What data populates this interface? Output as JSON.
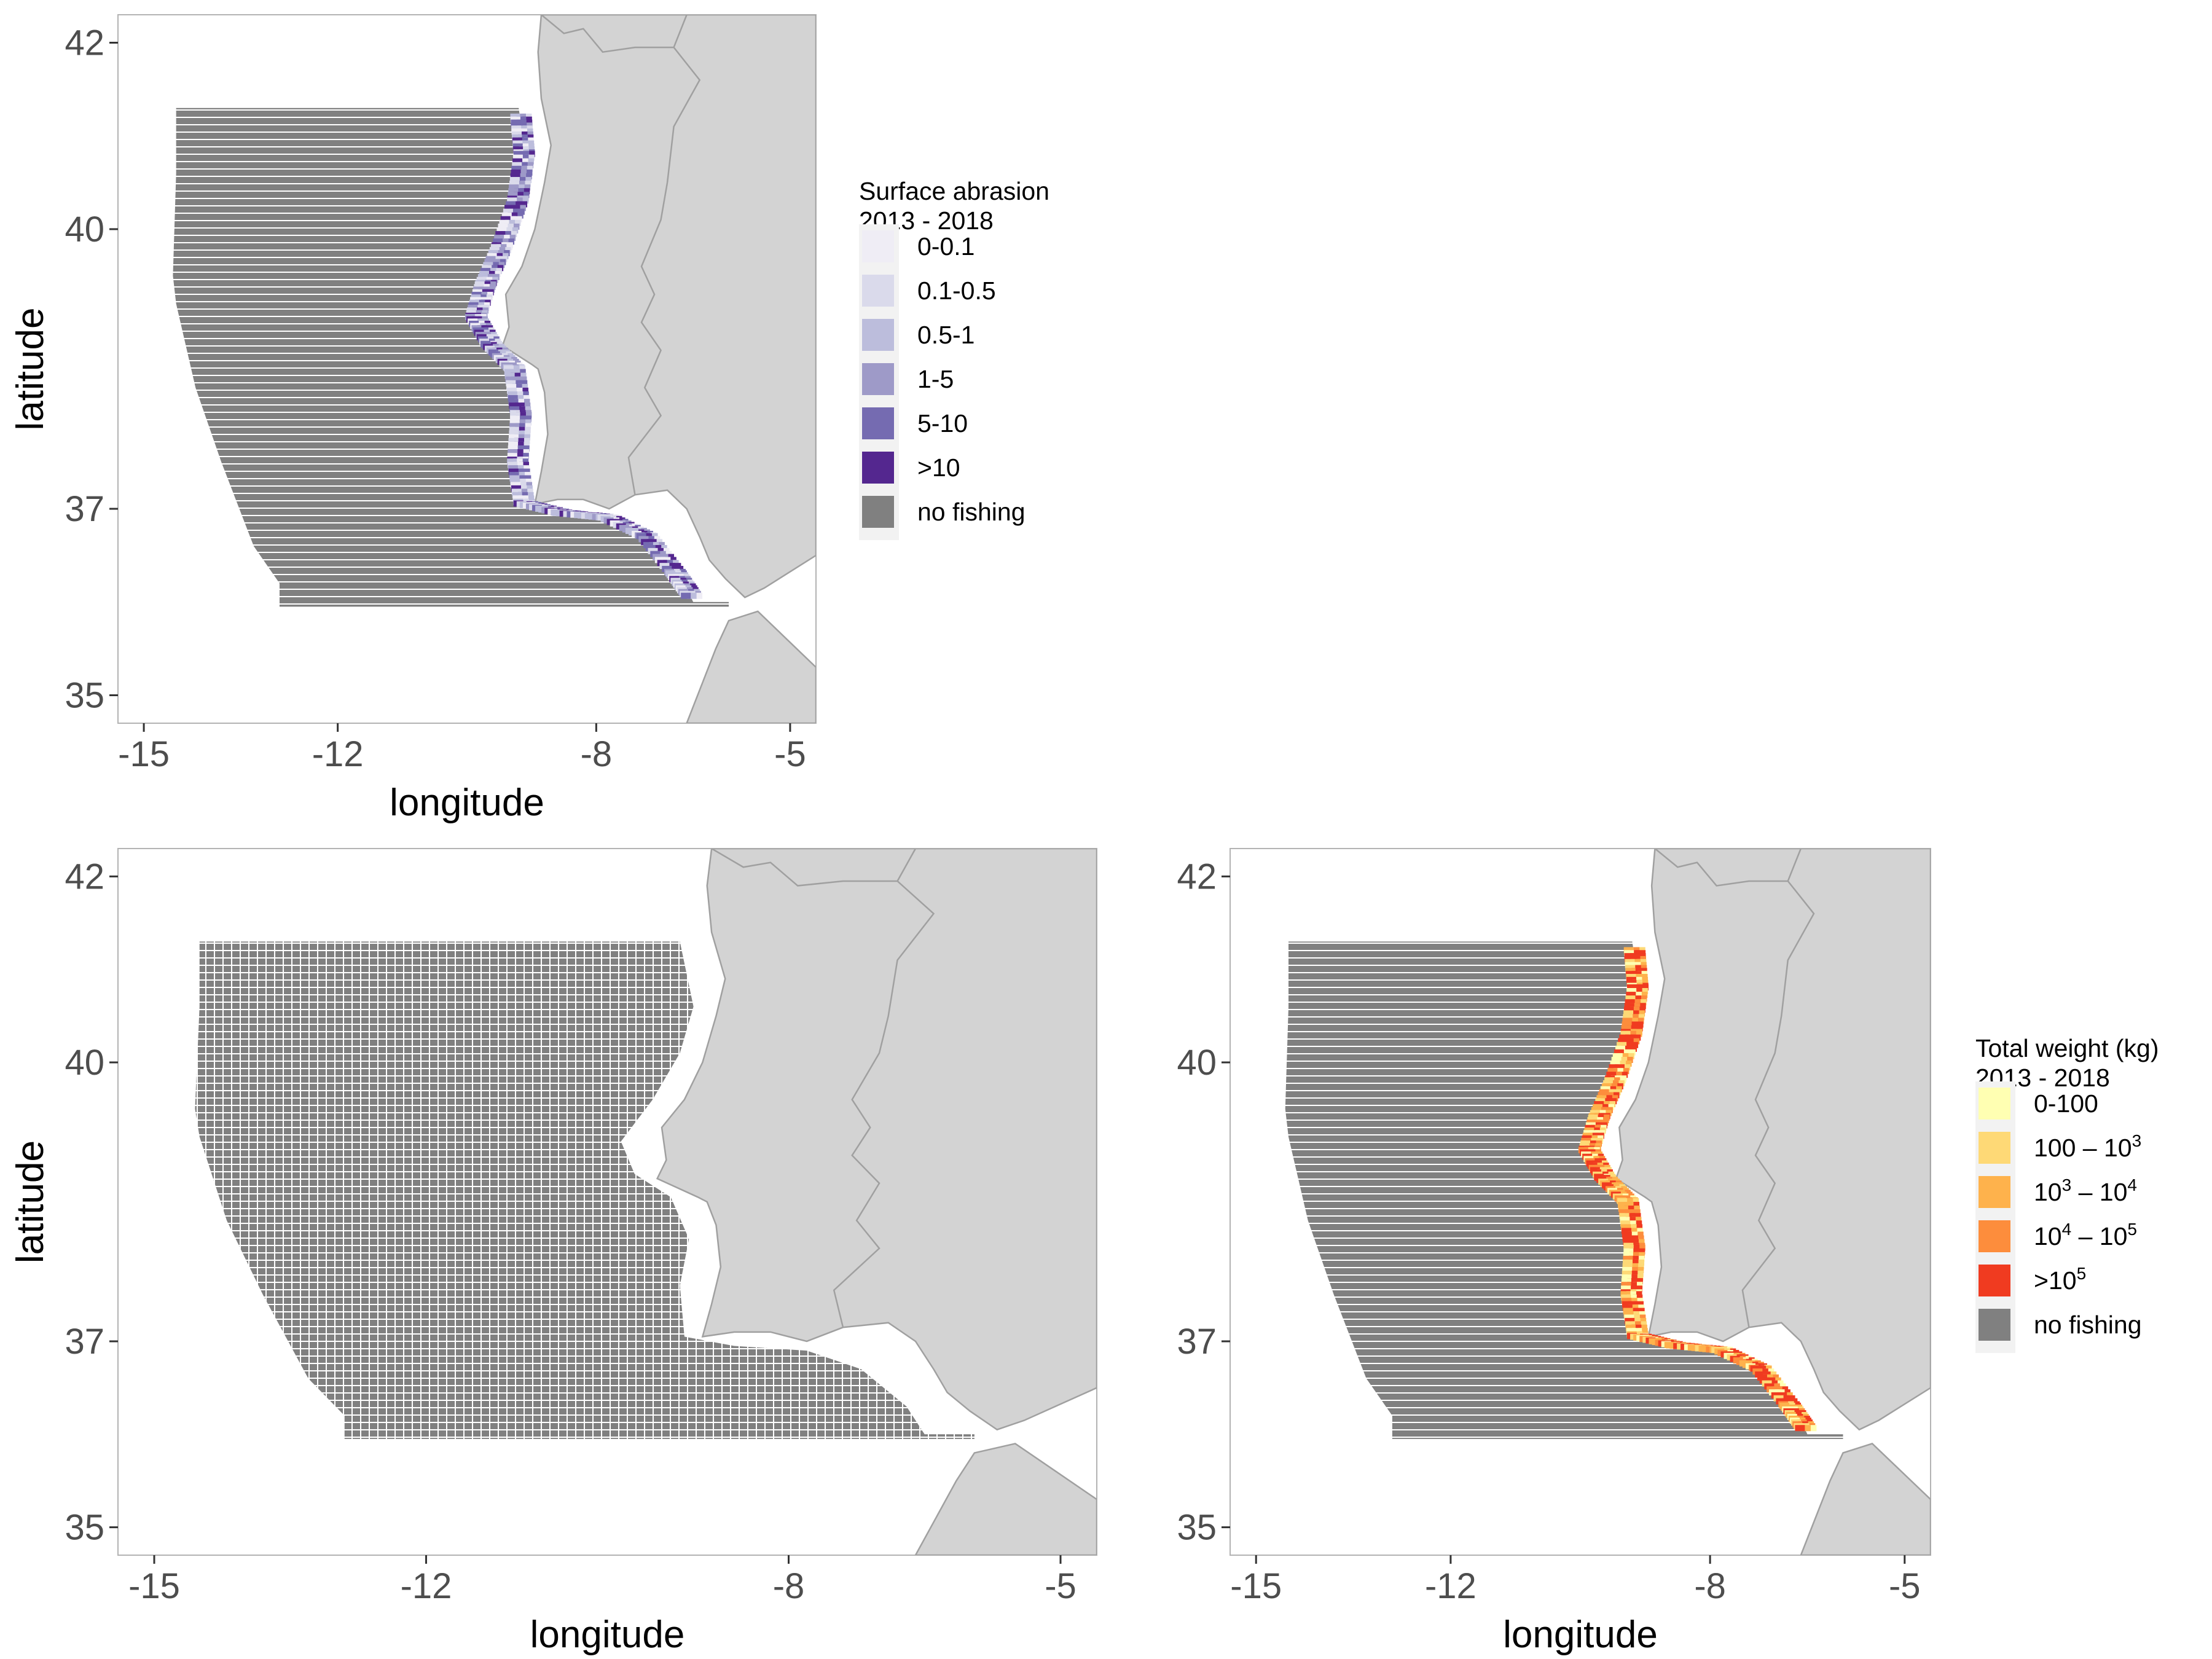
{
  "chart_data": [
    {
      "type": "heatmap",
      "panel": "top-left",
      "xlabel": "longitude",
      "ylabel": "latitude",
      "xlim": [
        -15.4,
        -4.6
      ],
      "ylim": [
        34.7,
        42.3
      ],
      "xticks": [
        -15,
        -12,
        -8,
        -5
      ],
      "yticks": [
        35,
        37,
        40,
        42
      ],
      "grid": false,
      "legend": {
        "title_lines": [
          "Surface abrasion",
          " 2013 - 2018"
        ],
        "items": [
          {
            "label": "0-0.1",
            "color": "#efedf5"
          },
          {
            "label": "0.1-0.5",
            "color": "#dadaeb"
          },
          {
            "label": "0.5-1",
            "color": "#bcbddc"
          },
          {
            "label": "1-5",
            "color": "#9e9ac8"
          },
          {
            "label": "5-10",
            "color": "#756bb1"
          },
          {
            "label": ">10",
            "color": "#54278f"
          },
          {
            "label": "no fishing",
            "color": "#808080"
          }
        ]
      }
    },
    {
      "type": "heatmap",
      "panel": "bottom-left",
      "xlabel": "longitude",
      "ylabel": "latitude",
      "xlim": [
        -15.4,
        -4.6
      ],
      "ylim": [
        34.7,
        42.3
      ],
      "xticks": [
        -15,
        -12,
        -8,
        -5
      ],
      "yticks": [
        35,
        37,
        40,
        42
      ],
      "grid": false
    },
    {
      "type": "heatmap",
      "panel": "bottom-right",
      "xlabel": "longitude",
      "ylabel": "latitude",
      "xlim": [
        -15.4,
        -4.6
      ],
      "ylim": [
        34.7,
        42.3
      ],
      "xticks": [
        -15,
        -12,
        -8,
        -5
      ],
      "yticks": [
        35,
        37,
        40,
        42
      ],
      "grid": false,
      "legend": {
        "title_lines": [
          "Total weight (kg)",
          " 2013 - 2018"
        ],
        "items": [
          {
            "label": "0-100",
            "base": "0-100",
            "sup": "",
            "color": "#ffffb2"
          },
          {
            "label": "100 – 10^3",
            "base": "100 – 10",
            "sup": "3",
            "color": "#fed976"
          },
          {
            "label": "10^3 – 10^4",
            "base": "10",
            "sup": "3",
            "tail": " – 10",
            "sup2": "4",
            "color": "#feb24c"
          },
          {
            "label": "10^4 – 10^5",
            "base": "10",
            "sup": "4",
            "tail": " – 10",
            "sup2": "5",
            "color": "#fd8d3c"
          },
          {
            "label": ">10^5",
            "base": ">10",
            "sup": "5",
            "color": "#f03b20"
          },
          {
            "label": "no fishing",
            "base": "no fishing",
            "sup": "",
            "color": "#808080"
          }
        ]
      }
    }
  ],
  "colors": {
    "land": "#d3d3d3",
    "land_border": "#a0a0a0",
    "grid_cells": "#808080",
    "background": "#ffffff"
  }
}
